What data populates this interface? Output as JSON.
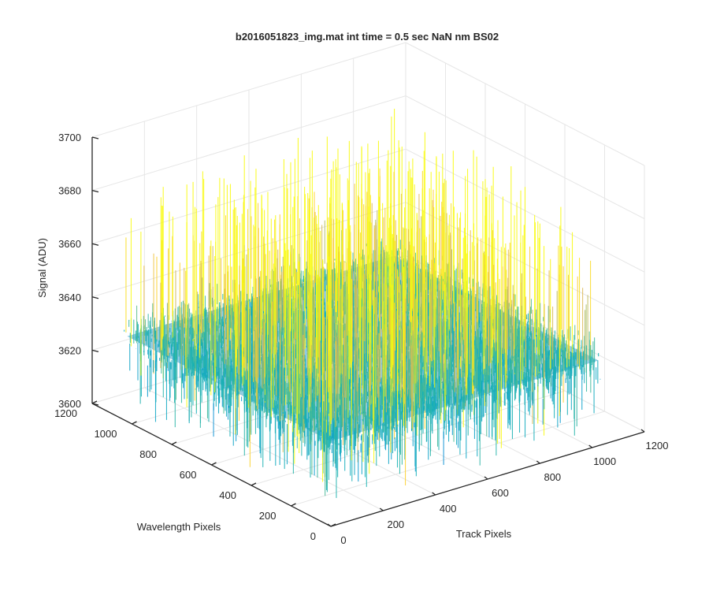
{
  "chart_data": {
    "type": "surface",
    "title": "b2016051823_img.mat int time = 0.5 sec  NaN nm BS02",
    "xlabel": "Track Pixels",
    "ylabel": "Wavelength Pixels",
    "zlabel": "Signal (ADU)",
    "xlim": [
      0,
      1200
    ],
    "ylim": [
      0,
      1200
    ],
    "zlim": [
      3600,
      3700
    ],
    "xticks": [
      "0",
      "200",
      "400",
      "600",
      "800",
      "1000",
      "1200"
    ],
    "yticks": [
      "0",
      "200",
      "400",
      "600",
      "800",
      "1000",
      "1200"
    ],
    "zticks": [
      "3600",
      "3620",
      "3640",
      "3660",
      "3680",
      "3700"
    ],
    "surface_extent": {
      "x": [
        0,
        1024
      ],
      "y": [
        0,
        1024
      ]
    },
    "mean_signal": 3632,
    "noise_range": [
      3605,
      3690
    ],
    "grid": true,
    "colormap": "parula"
  }
}
